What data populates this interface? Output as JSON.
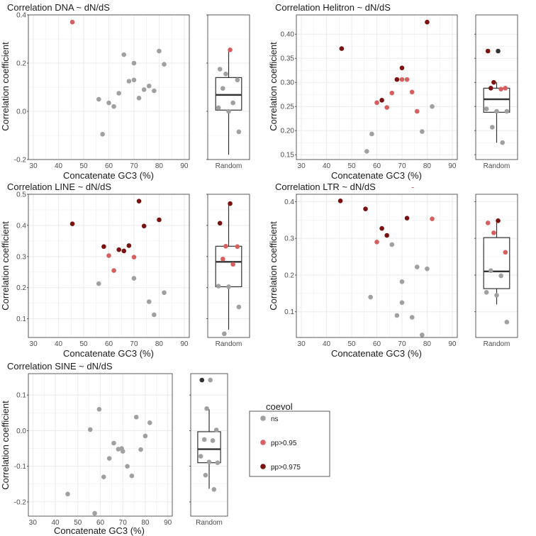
{
  "colors": {
    "ns": "#a0a0a0",
    "pp95": "#d6605f",
    "pp975": "#7a1212",
    "dark": "#333333",
    "grid": "#ebebeb"
  },
  "legend": {
    "title": "coevol",
    "items": [
      {
        "label": "ns",
        "color": "#a0a0a0"
      },
      {
        "label": "pp>0.95",
        "color": "#d6605f"
      },
      {
        "label": "pp>0.975",
        "color": "#7a1212"
      }
    ]
  },
  "chart_data": [
    {
      "type": "scatter",
      "title": "Correlation DNA ~ dN/dS",
      "xlabel": "Concatenate GC3 (%)",
      "ylabel": "Correlation coefficient",
      "xlim": [
        28,
        92
      ],
      "ylim": [
        -0.2,
        0.4
      ],
      "xticks": [
        30,
        40,
        50,
        60,
        70,
        80,
        90
      ],
      "yticks": [
        -0.2,
        0.0,
        0.2,
        0.4
      ],
      "ytick_labels": [
        "-0.2",
        "0.0",
        "0.2",
        "0.4"
      ],
      "box_label": "Random",
      "box": {
        "min": -0.18,
        "q1": 0.005,
        "median": 0.068,
        "q3": 0.14,
        "max": 0.255
      },
      "points": [
        {
          "x": 45.5,
          "y": 0.37,
          "g": "pp95"
        },
        {
          "x": 56,
          "y": 0.05,
          "g": "ns"
        },
        {
          "x": 57.5,
          "y": -0.095,
          "g": "ns"
        },
        {
          "x": 60,
          "y": 0.035,
          "g": "ns"
        },
        {
          "x": 62,
          "y": 0.02,
          "g": "ns"
        },
        {
          "x": 64,
          "y": 0.075,
          "g": "ns"
        },
        {
          "x": 66,
          "y": 0.235,
          "g": "ns"
        },
        {
          "x": 68,
          "y": 0.125,
          "g": "ns"
        },
        {
          "x": 70,
          "y": 0.2,
          "g": "ns"
        },
        {
          "x": 70,
          "y": 0.13,
          "g": "ns"
        },
        {
          "x": 72,
          "y": 0.055,
          "g": "ns"
        },
        {
          "x": 74,
          "y": 0.09,
          "g": "ns"
        },
        {
          "x": 76,
          "y": 0.105,
          "g": "ns"
        },
        {
          "x": 78,
          "y": 0.085,
          "g": "ns"
        },
        {
          "x": 80,
          "y": 0.25,
          "g": "ns"
        },
        {
          "x": 82,
          "y": 0.195,
          "g": "ns"
        }
      ],
      "jitter": [
        {
          "y": 0.255,
          "g": "pp95"
        },
        {
          "y": 0.175,
          "g": "ns"
        },
        {
          "y": 0.155,
          "g": "ns"
        },
        {
          "y": 0.13,
          "g": "ns"
        },
        {
          "y": 0.095,
          "g": "ns"
        },
        {
          "y": 0.035,
          "g": "ns"
        },
        {
          "y": 0.015,
          "g": "ns"
        },
        {
          "y": 0.0,
          "g": "ns"
        },
        {
          "y": -0.085,
          "g": "ns"
        }
      ]
    },
    {
      "type": "scatter",
      "title": "Correlation Helitron ~ dN/dS",
      "xlabel": "Concatenate GC3 (%)",
      "ylabel": "Correlation coefficient",
      "xlim": [
        28,
        92
      ],
      "ylim": [
        0.14,
        0.44
      ],
      "xticks": [
        30,
        40,
        50,
        60,
        70,
        80,
        90
      ],
      "yticks": [
        0.15,
        0.2,
        0.25,
        0.3,
        0.35,
        0.4
      ],
      "ytick_labels": [
        "0.15",
        "0.20",
        "0.25",
        "0.30",
        "0.35",
        "0.40"
      ],
      "box_label": "Random",
      "box": {
        "min": 0.175,
        "q1": 0.238,
        "median": 0.265,
        "q3": 0.288,
        "max": 0.3
      },
      "points": [
        {
          "x": 46,
          "y": 0.37,
          "g": "pp975"
        },
        {
          "x": 56,
          "y": 0.157,
          "g": "ns"
        },
        {
          "x": 58,
          "y": 0.193,
          "g": "ns"
        },
        {
          "x": 60,
          "y": 0.258,
          "g": "pp95"
        },
        {
          "x": 62,
          "y": 0.263,
          "g": "pp975"
        },
        {
          "x": 64,
          "y": 0.248,
          "g": "pp95"
        },
        {
          "x": 66,
          "y": 0.278,
          "g": "pp95"
        },
        {
          "x": 68,
          "y": 0.306,
          "g": "pp975"
        },
        {
          "x": 70,
          "y": 0.33,
          "g": "pp975"
        },
        {
          "x": 70,
          "y": 0.306,
          "g": "pp95"
        },
        {
          "x": 72,
          "y": 0.306,
          "g": "pp95"
        },
        {
          "x": 74,
          "y": 0.28,
          "g": "pp95"
        },
        {
          "x": 76,
          "y": 0.24,
          "g": "pp95"
        },
        {
          "x": 78,
          "y": 0.198,
          "g": "ns"
        },
        {
          "x": 80,
          "y": 0.425,
          "g": "pp975"
        },
        {
          "x": 82,
          "y": 0.25,
          "g": "ns"
        }
      ],
      "jitter": [
        {
          "y": 0.365,
          "g": "dark"
        },
        {
          "y": 0.365,
          "g": "pp975"
        },
        {
          "y": 0.3,
          "g": "pp975"
        },
        {
          "y": 0.288,
          "g": "pp95"
        },
        {
          "y": 0.288,
          "g": "pp975"
        },
        {
          "y": 0.286,
          "g": "pp95"
        },
        {
          "y": 0.245,
          "g": "ns"
        },
        {
          "y": 0.24,
          "g": "ns"
        },
        {
          "y": 0.24,
          "g": "ns"
        },
        {
          "y": 0.207,
          "g": "ns"
        },
        {
          "y": 0.175,
          "g": "ns"
        }
      ]
    },
    {
      "type": "scatter",
      "title": "Correlation LINE ~ dN/dS",
      "xlabel": "Concatenate GC3 (%)",
      "ylabel": "Correlation coefficient",
      "xlim": [
        28,
        92
      ],
      "ylim": [
        0.04,
        0.5
      ],
      "xticks": [
        30,
        40,
        50,
        60,
        70,
        80,
        90
      ],
      "yticks": [
        0.1,
        0.2,
        0.3,
        0.4,
        0.5
      ],
      "ytick_labels": [
        "0.1",
        "0.2",
        "0.3",
        "0.4",
        "0.5"
      ],
      "box_label": "Random",
      "box": {
        "min": 0.065,
        "q1": 0.203,
        "median": 0.283,
        "q3": 0.333,
        "max": 0.465
      },
      "points": [
        {
          "x": 45.5,
          "y": 0.405,
          "g": "pp975"
        },
        {
          "x": 56,
          "y": 0.213,
          "g": "ns"
        },
        {
          "x": 58,
          "y": 0.332,
          "g": "pp975"
        },
        {
          "x": 60,
          "y": 0.303,
          "g": "pp95"
        },
        {
          "x": 62,
          "y": 0.255,
          "g": "pp95"
        },
        {
          "x": 64,
          "y": 0.322,
          "g": "pp975"
        },
        {
          "x": 66,
          "y": 0.318,
          "g": "pp975"
        },
        {
          "x": 68,
          "y": 0.335,
          "g": "pp975"
        },
        {
          "x": 70,
          "y": 0.298,
          "g": "pp95"
        },
        {
          "x": 70,
          "y": 0.23,
          "g": "ns"
        },
        {
          "x": 72,
          "y": 0.478,
          "g": "pp975"
        },
        {
          "x": 74,
          "y": 0.398,
          "g": "pp975"
        },
        {
          "x": 76,
          "y": 0.155,
          "g": "ns"
        },
        {
          "x": 78,
          "y": 0.113,
          "g": "ns"
        },
        {
          "x": 80,
          "y": 0.418,
          "g": "pp975"
        },
        {
          "x": 82,
          "y": 0.184,
          "g": "ns"
        }
      ],
      "jitter": [
        {
          "y": 0.47,
          "g": "pp975"
        },
        {
          "y": 0.407,
          "g": "pp975"
        },
        {
          "y": 0.333,
          "g": "pp95"
        },
        {
          "y": 0.332,
          "g": "pp95"
        },
        {
          "y": 0.292,
          "g": "pp95"
        },
        {
          "y": 0.275,
          "g": "pp95"
        },
        {
          "y": 0.205,
          "g": "ns"
        },
        {
          "y": 0.203,
          "g": "ns"
        },
        {
          "y": 0.138,
          "g": "ns"
        },
        {
          "y": 0.052,
          "g": "ns"
        }
      ]
    },
    {
      "type": "scatter",
      "title": "Correlation LTR ~ dN/dS",
      "xlabel": "Concatenate GC3 (%)",
      "ylabel": "Correlation coefficient",
      "xlim": [
        28,
        92
      ],
      "ylim": [
        0.03,
        0.42
      ],
      "xticks": [
        30,
        40,
        50,
        60,
        70,
        80,
        90
      ],
      "yticks": [
        0.1,
        0.2,
        0.3,
        0.4
      ],
      "ytick_labels": [
        "0.1",
        "0.2",
        "0.3",
        "0.4"
      ],
      "box_label": "Random",
      "box": {
        "min": 0.12,
        "q1": 0.163,
        "median": 0.21,
        "q3": 0.302,
        "max": 0.348
      },
      "points": [
        {
          "x": 45.5,
          "y": 0.402,
          "g": "pp975"
        },
        {
          "x": 55.5,
          "y": 0.38,
          "g": "pp975"
        },
        {
          "x": 57.5,
          "y": 0.14,
          "g": "ns"
        },
        {
          "x": 60,
          "y": 0.29,
          "g": "pp95"
        },
        {
          "x": 62,
          "y": 0.327,
          "g": "pp975"
        },
        {
          "x": 64,
          "y": 0.308,
          "g": "pp975"
        },
        {
          "x": 66,
          "y": 0.283,
          "g": "ns"
        },
        {
          "x": 68,
          "y": 0.09,
          "g": "ns"
        },
        {
          "x": 70,
          "y": 0.182,
          "g": "ns"
        },
        {
          "x": 70,
          "y": 0.125,
          "g": "ns"
        },
        {
          "x": 72,
          "y": 0.355,
          "g": "pp975"
        },
        {
          "x": 74,
          "y": 0.085,
          "g": "ns"
        },
        {
          "x": 76,
          "y": 0.222,
          "g": "ns"
        },
        {
          "x": 78,
          "y": 0.037,
          "g": "ns"
        },
        {
          "x": 80,
          "y": 0.217,
          "g": "ns"
        },
        {
          "x": 82,
          "y": 0.353,
          "g": "pp95"
        }
      ],
      "jitter": [
        {
          "y": 0.348,
          "g": "pp975"
        },
        {
          "y": 0.342,
          "g": "pp95"
        },
        {
          "y": 0.315,
          "g": "pp95"
        },
        {
          "y": 0.262,
          "g": "pp95"
        },
        {
          "y": 0.212,
          "g": "ns"
        },
        {
          "y": 0.198,
          "g": "ns"
        },
        {
          "y": 0.153,
          "g": "ns"
        },
        {
          "y": 0.145,
          "g": "ns"
        },
        {
          "y": 0.072,
          "g": "ns"
        }
      ]
    },
    {
      "type": "scatter",
      "title": "Correlation SINE ~ dN/dS",
      "xlabel": "Concatenate GC3 (%)",
      "ylabel": "Correlation coefficient",
      "xlim": [
        28,
        92
      ],
      "ylim": [
        -0.24,
        0.16
      ],
      "xticks": [
        30,
        40,
        50,
        60,
        70,
        80,
        90
      ],
      "yticks": [
        -0.2,
        -0.1,
        0.0,
        0.1
      ],
      "ytick_labels": [
        "-0.2",
        "-0.1",
        "0.0",
        "0.1"
      ],
      "box_label": "Random",
      "box": {
        "min": -0.163,
        "q1": -0.09,
        "median": -0.052,
        "q3": -0.003,
        "max": 0.06
      },
      "points": [
        {
          "x": 45.5,
          "y": -0.178,
          "g": "ns"
        },
        {
          "x": 55.5,
          "y": 0.003,
          "g": "ns"
        },
        {
          "x": 57.5,
          "y": -0.232,
          "g": "ns"
        },
        {
          "x": 59.5,
          "y": 0.06,
          "g": "ns"
        },
        {
          "x": 61.5,
          "y": -0.13,
          "g": "ns"
        },
        {
          "x": 64,
          "y": -0.078,
          "g": "ns"
        },
        {
          "x": 66,
          "y": -0.035,
          "g": "ns"
        },
        {
          "x": 68,
          "y": -0.052,
          "g": "ns"
        },
        {
          "x": 69.5,
          "y": -0.05,
          "g": "ns"
        },
        {
          "x": 70,
          "y": -0.058,
          "g": "ns"
        },
        {
          "x": 72,
          "y": -0.1,
          "g": "ns"
        },
        {
          "x": 74,
          "y": -0.127,
          "g": "ns"
        },
        {
          "x": 76,
          "y": 0.038,
          "g": "ns"
        },
        {
          "x": 78,
          "y": -0.053,
          "g": "ns"
        },
        {
          "x": 80,
          "y": -0.015,
          "g": "ns"
        },
        {
          "x": 82,
          "y": 0.022,
          "g": "ns"
        }
      ],
      "jitter": [
        {
          "y": 0.142,
          "g": "ns"
        },
        {
          "y": 0.142,
          "g": "dark"
        },
        {
          "y": 0.062,
          "g": "ns"
        },
        {
          "y": 0.002,
          "g": "ns"
        },
        {
          "y": -0.025,
          "g": "ns"
        },
        {
          "y": -0.028,
          "g": "ns"
        },
        {
          "y": -0.072,
          "g": "ns"
        },
        {
          "y": -0.088,
          "g": "ns"
        },
        {
          "y": -0.09,
          "g": "ns"
        },
        {
          "y": -0.125,
          "g": "ns"
        },
        {
          "y": -0.165,
          "g": "ns"
        }
      ]
    }
  ]
}
